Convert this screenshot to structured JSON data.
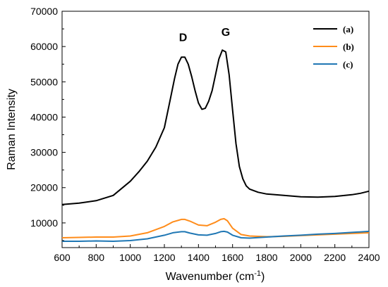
{
  "chart_data": {
    "type": "line",
    "title": "",
    "xlabel": "Wavenumber (cm",
    "xlabel_sup": "-1",
    "xlabel_close": ")",
    "ylabel": "Raman Intensity",
    "xlim": [
      600,
      2400
    ],
    "ylim": [
      3000,
      70000
    ],
    "xticks": [
      600,
      800,
      1000,
      1200,
      1400,
      1600,
      1800,
      2000,
      2200,
      2400
    ],
    "yticks": [
      10000,
      20000,
      30000,
      40000,
      50000,
      60000,
      70000
    ],
    "grid": false,
    "legend_position": "top-right",
    "annotations": [
      {
        "text": "D",
        "x": 1310,
        "y": 61500
      },
      {
        "text": "G",
        "x": 1560,
        "y": 63000
      }
    ],
    "series": [
      {
        "name": "(a)",
        "color": "#000000",
        "x": [
          600,
          700,
          800,
          900,
          1000,
          1050,
          1100,
          1150,
          1200,
          1230,
          1260,
          1280,
          1300,
          1320,
          1340,
          1360,
          1380,
          1400,
          1420,
          1440,
          1460,
          1480,
          1500,
          1520,
          1540,
          1560,
          1580,
          1600,
          1620,
          1640,
          1660,
          1680,
          1700,
          1750,
          1800,
          1900,
          2000,
          2100,
          2200,
          2300,
          2350,
          2400
        ],
        "y": [
          15200,
          15600,
          16300,
          17800,
          21800,
          24500,
          27500,
          31500,
          37000,
          44000,
          51000,
          55000,
          57000,
          57000,
          55000,
          51500,
          47500,
          44000,
          42200,
          42500,
          44500,
          47500,
          52000,
          56500,
          59000,
          58500,
          52000,
          42000,
          32500,
          26000,
          22500,
          20500,
          19600,
          18700,
          18200,
          17800,
          17400,
          17300,
          17500,
          18000,
          18400,
          19000
        ]
      },
      {
        "name": "(b)",
        "color": "#ff8c1a",
        "x": [
          600,
          700,
          800,
          900,
          1000,
          1100,
          1200,
          1250,
          1300,
          1320,
          1350,
          1400,
          1450,
          1500,
          1530,
          1550,
          1570,
          1600,
          1650,
          1700,
          1800,
          1900,
          2000,
          2100,
          2200,
          2300,
          2400
        ],
        "y": [
          5800,
          5900,
          6000,
          6000,
          6300,
          7200,
          9000,
          10300,
          11000,
          11000,
          10500,
          9400,
          9200,
          10200,
          11000,
          11200,
          10600,
          8500,
          6700,
          6300,
          6100,
          6200,
          6400,
          6600,
          6800,
          7000,
          7200
        ]
      },
      {
        "name": "(c)",
        "color": "#1f77b4",
        "x": [
          600,
          700,
          800,
          900,
          1000,
          1100,
          1200,
          1250,
          1300,
          1320,
          1350,
          1400,
          1450,
          1500,
          1530,
          1550,
          1570,
          1600,
          1650,
          1700,
          1800,
          1900,
          2000,
          2100,
          2200,
          2300,
          2400
        ],
        "y": [
          4800,
          4800,
          4900,
          4800,
          5000,
          5500,
          6500,
          7200,
          7500,
          7500,
          7100,
          6600,
          6500,
          7000,
          7500,
          7600,
          7400,
          6500,
          5800,
          5700,
          6000,
          6300,
          6500,
          6800,
          7000,
          7300,
          7600
        ]
      }
    ]
  }
}
